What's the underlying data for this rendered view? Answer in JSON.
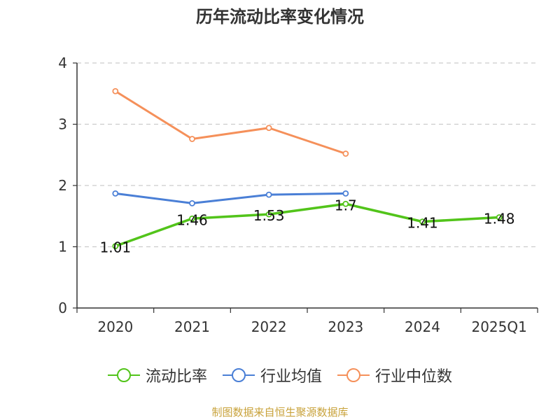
{
  "chart_data": {
    "type": "line",
    "title": "历年流动比率变化情况",
    "categories": [
      "2020",
      "2021",
      "2022",
      "2023",
      "2024",
      "2025Q1"
    ],
    "ylim": [
      0,
      4
    ],
    "yticks": [
      0,
      1,
      2,
      3,
      4
    ],
    "grid": true,
    "legend_position": "bottom",
    "series": [
      {
        "name": "流动比率",
        "color": "#52c41a",
        "values": [
          1.01,
          1.46,
          1.53,
          1.7,
          1.41,
          1.48
        ],
        "labels": [
          "1.01",
          "1.46",
          "1.53",
          "1.7",
          "1.41",
          "1.48"
        ]
      },
      {
        "name": "行业均值",
        "color": "#4a7fd6",
        "values": [
          1.87,
          1.71,
          1.85,
          1.87,
          null,
          null
        ]
      },
      {
        "name": "行业中位数",
        "color": "#f5905a",
        "values": [
          3.54,
          2.76,
          2.94,
          2.52,
          null,
          null
        ]
      }
    ]
  },
  "footer": {
    "source": "制图数据来自恒生聚源数据库"
  }
}
